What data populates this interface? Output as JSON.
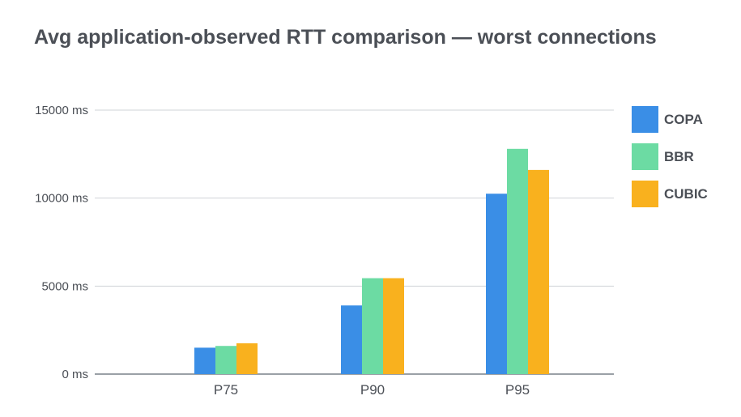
{
  "title": "Avg application-observed RTT comparison — worst connections",
  "chart_data": {
    "type": "bar",
    "title": "Avg application-observed RTT comparison — worst connections",
    "xlabel": "",
    "ylabel": "",
    "categories": [
      "P75",
      "P90",
      "P95"
    ],
    "series": [
      {
        "name": "COPA",
        "color": "#3a8ee6",
        "values": [
          1500,
          3900,
          10250
        ]
      },
      {
        "name": "BBR",
        "color": "#6cdba3",
        "values": [
          1600,
          5450,
          12800
        ]
      },
      {
        "name": "CUBIC",
        "color": "#f9b11e",
        "values": [
          1750,
          5450,
          11600
        ]
      }
    ],
    "ylim": [
      0,
      15000
    ],
    "yticks": [
      0,
      5000,
      10000,
      15000
    ],
    "ytick_labels": [
      "0 ms",
      "5000 ms",
      "10000 ms",
      "15000 ms"
    ],
    "grid": true,
    "legend": "right"
  }
}
